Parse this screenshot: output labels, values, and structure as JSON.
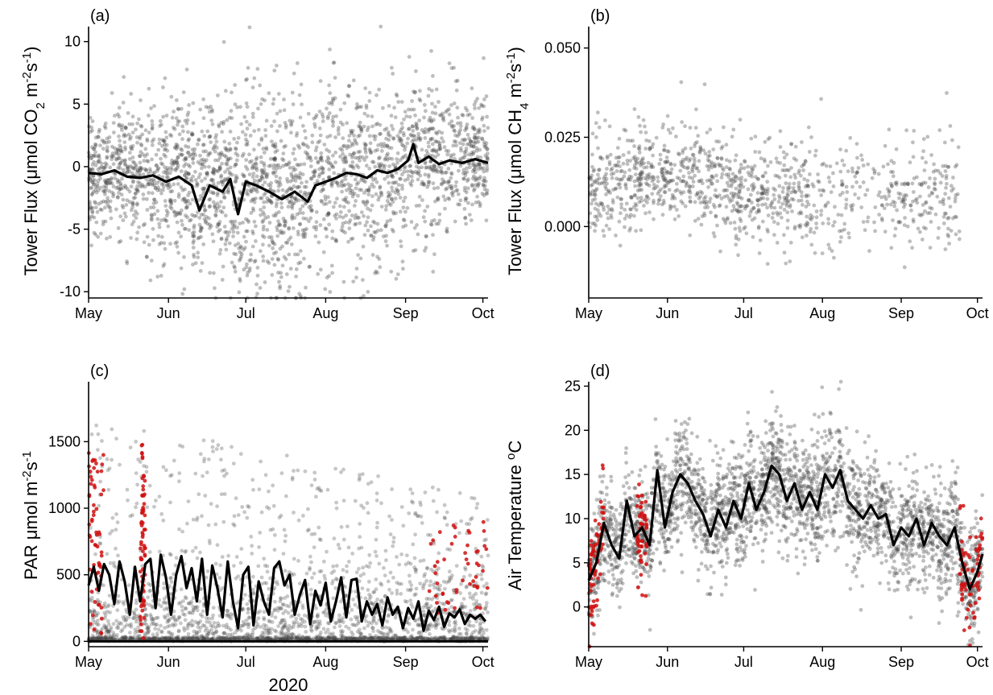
{
  "figure_xlabel": "2020",
  "colors": {
    "points": "#444444",
    "highlight": "#d01010",
    "line": "#000000"
  },
  "chart_data": [
    {
      "panel": "(a)",
      "type": "scatter",
      "ylabel_main": "Tower Flux (",
      "ylabel_mu": "μ",
      "ylabel_rest": "mol CO",
      "ylabel_sub": "2",
      "ylabel_unit": " m",
      "ylabel_sup1": "-2",
      "ylabel_s": "s",
      "ylabel_sup2": "-1",
      "ylabel_close": ")",
      "xlim": [
        "2020-05-01",
        "2020-10-03"
      ],
      "ylim": [
        -10.5,
        11.2
      ],
      "xticks": [
        "May",
        "Jun",
        "Jul",
        "Aug",
        "Sep",
        "Oct"
      ],
      "yticks": [
        "-10",
        "-5",
        "0",
        "5",
        "10"
      ],
      "ytick_values": [
        -10,
        -5,
        0,
        5,
        10
      ],
      "series": [
        {
          "type": "line",
          "x_day": [
            0,
            5,
            10,
            15,
            20,
            25,
            30,
            35,
            40,
            43,
            47,
            52,
            55,
            58,
            61,
            65,
            70,
            75,
            80,
            85,
            88,
            92,
            96,
            100,
            104,
            108,
            112,
            116,
            120,
            124,
            126,
            128,
            132,
            136,
            140,
            145,
            150,
            155
          ],
          "y": [
            -0.5,
            -0.6,
            -0.3,
            -0.8,
            -0.9,
            -0.7,
            -1.2,
            -0.8,
            -1.5,
            -3.5,
            -1.5,
            -2.0,
            -1.0,
            -3.8,
            -1.2,
            -1.5,
            -2.0,
            -2.6,
            -2.0,
            -2.8,
            -1.5,
            -1.2,
            -0.9,
            -0.5,
            -0.6,
            -0.9,
            -0.3,
            -0.5,
            -0.2,
            0.5,
            1.8,
            0.3,
            0.8,
            0.2,
            0.5,
            0.3,
            0.6,
            0.3
          ]
        }
      ]
    },
    {
      "panel": "(b)",
      "type": "scatter",
      "ylabel_main": "Tower Flux (",
      "ylabel_mu": "μ",
      "ylabel_rest": "mol CH",
      "ylabel_sub": "4",
      "ylabel_unit": " m",
      "ylabel_sup1": "-2",
      "ylabel_s": "s",
      "ylabel_sup2": "-1",
      "ylabel_close": ")",
      "xlim": [
        "2020-05-01",
        "2020-10-03"
      ],
      "ylim": [
        -0.02,
        0.056
      ],
      "xticks": [
        "May",
        "Jun",
        "Jul",
        "Aug",
        "Sep",
        "Oct"
      ],
      "yticks": [
        "0.000",
        "0.025",
        "0.050"
      ],
      "ytick_values": [
        0,
        0.025,
        0.05
      ]
    },
    {
      "panel": "(c)",
      "type": "scatter",
      "ylabel_main": "PAR ",
      "ylabel_mu": "μ",
      "ylabel_rest": "mol m",
      "ylabel_sup1": "-2",
      "ylabel_s": "s",
      "ylabel_sup2": "-1",
      "xlim": [
        "2020-05-01",
        "2020-10-03"
      ],
      "ylim": [
        -40,
        1950
      ],
      "xticks": [
        "May",
        "Jun",
        "Jul",
        "Aug",
        "Sep",
        "Oct"
      ],
      "yticks": [
        "0",
        "500",
        "1000",
        "1500"
      ],
      "ytick_values": [
        0,
        500,
        1000,
        1500
      ],
      "series": [
        {
          "type": "line",
          "x_day": [
            0,
            2,
            4,
            6,
            8,
            10,
            12,
            14,
            16,
            18,
            20,
            22,
            24,
            26,
            28,
            30,
            32,
            34,
            36,
            38,
            40,
            42,
            44,
            46,
            48,
            50,
            52,
            54,
            56,
            58,
            60,
            62,
            64,
            66,
            68,
            70,
            72,
            74,
            76,
            78,
            80,
            82,
            84,
            86,
            88,
            90,
            92,
            94,
            96,
            98,
            100,
            102,
            104,
            106,
            108,
            110,
            112,
            114,
            116,
            118,
            120,
            122,
            124,
            126,
            128,
            130,
            132,
            134,
            136,
            138,
            140,
            142,
            144,
            146,
            148,
            150,
            152,
            154
          ],
          "y": [
            420,
            560,
            380,
            580,
            500,
            280,
            600,
            450,
            200,
            560,
            300,
            580,
            620,
            250,
            650,
            480,
            200,
            500,
            640,
            400,
            550,
            300,
            620,
            200,
            570,
            400,
            180,
            600,
            300,
            100,
            500,
            560,
            120,
            450,
            300,
            200,
            550,
            600,
            420,
            500,
            200,
            350,
            460,
            130,
            380,
            270,
            440,
            150,
            300,
            480,
            180,
            460,
            470,
            150,
            300,
            200,
            280,
            120,
            330,
            200,
            260,
            100,
            250,
            170,
            300,
            80,
            230,
            160,
            260,
            110,
            210,
            180,
            240,
            130,
            200,
            170,
            200,
            150
          ]
        }
      ]
    },
    {
      "panel": "(d)",
      "type": "scatter",
      "ylabel_main": "Air Temperature ",
      "ylabel_deg": "o",
      "ylabel_unit": "C",
      "xlim": [
        "2020-05-01",
        "2020-10-03"
      ],
      "ylim": [
        -4.5,
        25.5
      ],
      "xticks": [
        "May",
        "Jun",
        "Jul",
        "Aug",
        "Sep",
        "Oct"
      ],
      "yticks": [
        "0",
        "5",
        "10",
        "15",
        "20",
        "25"
      ],
      "ytick_values": [
        0,
        5,
        10,
        15,
        20,
        25
      ],
      "series": [
        {
          "type": "line",
          "x_day": [
            0,
            3,
            6,
            9,
            12,
            15,
            18,
            21,
            24,
            27,
            30,
            33,
            36,
            39,
            42,
            45,
            48,
            51,
            54,
            57,
            60,
            63,
            66,
            69,
            72,
            75,
            78,
            81,
            84,
            87,
            90,
            93,
            96,
            99,
            102,
            105,
            108,
            111,
            114,
            117,
            120,
            123,
            126,
            129,
            132,
            135,
            138,
            141,
            144,
            147,
            150,
            153,
            155
          ],
          "y": [
            3.0,
            5.0,
            9.5,
            7.0,
            5.5,
            12.0,
            8.0,
            9.0,
            7.0,
            15.5,
            9.0,
            13.0,
            15.0,
            14.0,
            12.0,
            10.5,
            8.0,
            11.0,
            9.0,
            12.0,
            10.0,
            14.0,
            11.0,
            13.0,
            16.0,
            15.0,
            12.0,
            14.0,
            11.0,
            13.0,
            11.0,
            15.0,
            13.5,
            15.5,
            12.0,
            11.0,
            10.0,
            11.5,
            10.0,
            10.5,
            7.0,
            9.0,
            8.0,
            10.0,
            7.0,
            9.5,
            8.0,
            7.0,
            9.0,
            5.0,
            2.0,
            4.0,
            6.0
          ]
        }
      ]
    }
  ]
}
